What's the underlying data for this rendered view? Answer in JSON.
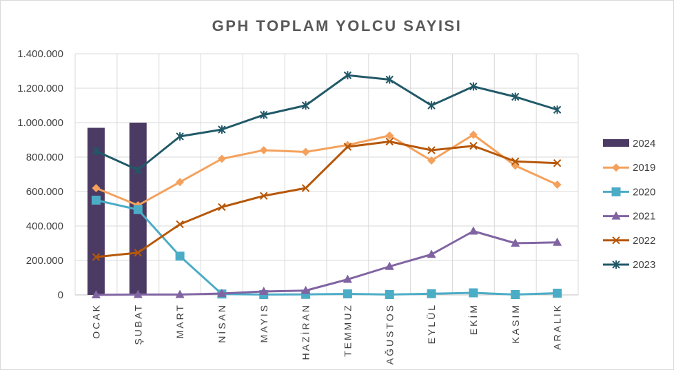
{
  "chart_data": {
    "type": "line",
    "title": "GPH TOPLAM  YOLCU SAYISI",
    "categories": [
      "OCAK",
      "ŞUBAT",
      "MART",
      "NİSAN",
      "MAYIS",
      "HAZİRAN",
      "TEMMUZ",
      "AĞUSTOS",
      "EYLÜL",
      "EKİM",
      "KASIM",
      "ARALIK"
    ],
    "ylim": [
      0,
      1400000
    ],
    "yticks": [
      "0",
      "200.000",
      "400.000",
      "600.000",
      "800.000",
      "1.000.000",
      "1.200.000",
      "1.400.000"
    ],
    "ytick_values": [
      0,
      200000,
      400000,
      600000,
      800000,
      1000000,
      1200000,
      1400000
    ],
    "grid": true,
    "legend_position": "right",
    "bar_series": {
      "name": "2024",
      "color": "#4b3a63",
      "values": [
        970000,
        1000000,
        null,
        null,
        null,
        null,
        null,
        null,
        null,
        null,
        null,
        null
      ]
    },
    "series": [
      {
        "name": "2019",
        "color": "#f4a15d",
        "marker": "diamond",
        "values": [
          620000,
          520000,
          655000,
          790000,
          840000,
          830000,
          870000,
          925000,
          780000,
          930000,
          750000,
          640000
        ]
      },
      {
        "name": "2020",
        "color": "#4bacc6",
        "marker": "square",
        "values": [
          550000,
          495000,
          225000,
          5000,
          2000,
          3000,
          6000,
          2000,
          7000,
          12000,
          2000,
          10000
        ]
      },
      {
        "name": "2021",
        "color": "#8064a2",
        "marker": "triangle",
        "values": [
          0,
          2000,
          2000,
          8000,
          20000,
          25000,
          90000,
          165000,
          235000,
          370000,
          300000,
          305000
        ]
      },
      {
        "name": "2022",
        "color": "#b65708",
        "marker": "x",
        "values": [
          220000,
          245000,
          410000,
          510000,
          575000,
          620000,
          860000,
          890000,
          840000,
          865000,
          775000,
          765000
        ]
      },
      {
        "name": "2023",
        "color": "#215968",
        "marker": "star",
        "values": [
          835000,
          725000,
          920000,
          960000,
          1045000,
          1100000,
          1275000,
          1250000,
          1100000,
          1210000,
          1150000,
          1075000
        ]
      }
    ]
  }
}
